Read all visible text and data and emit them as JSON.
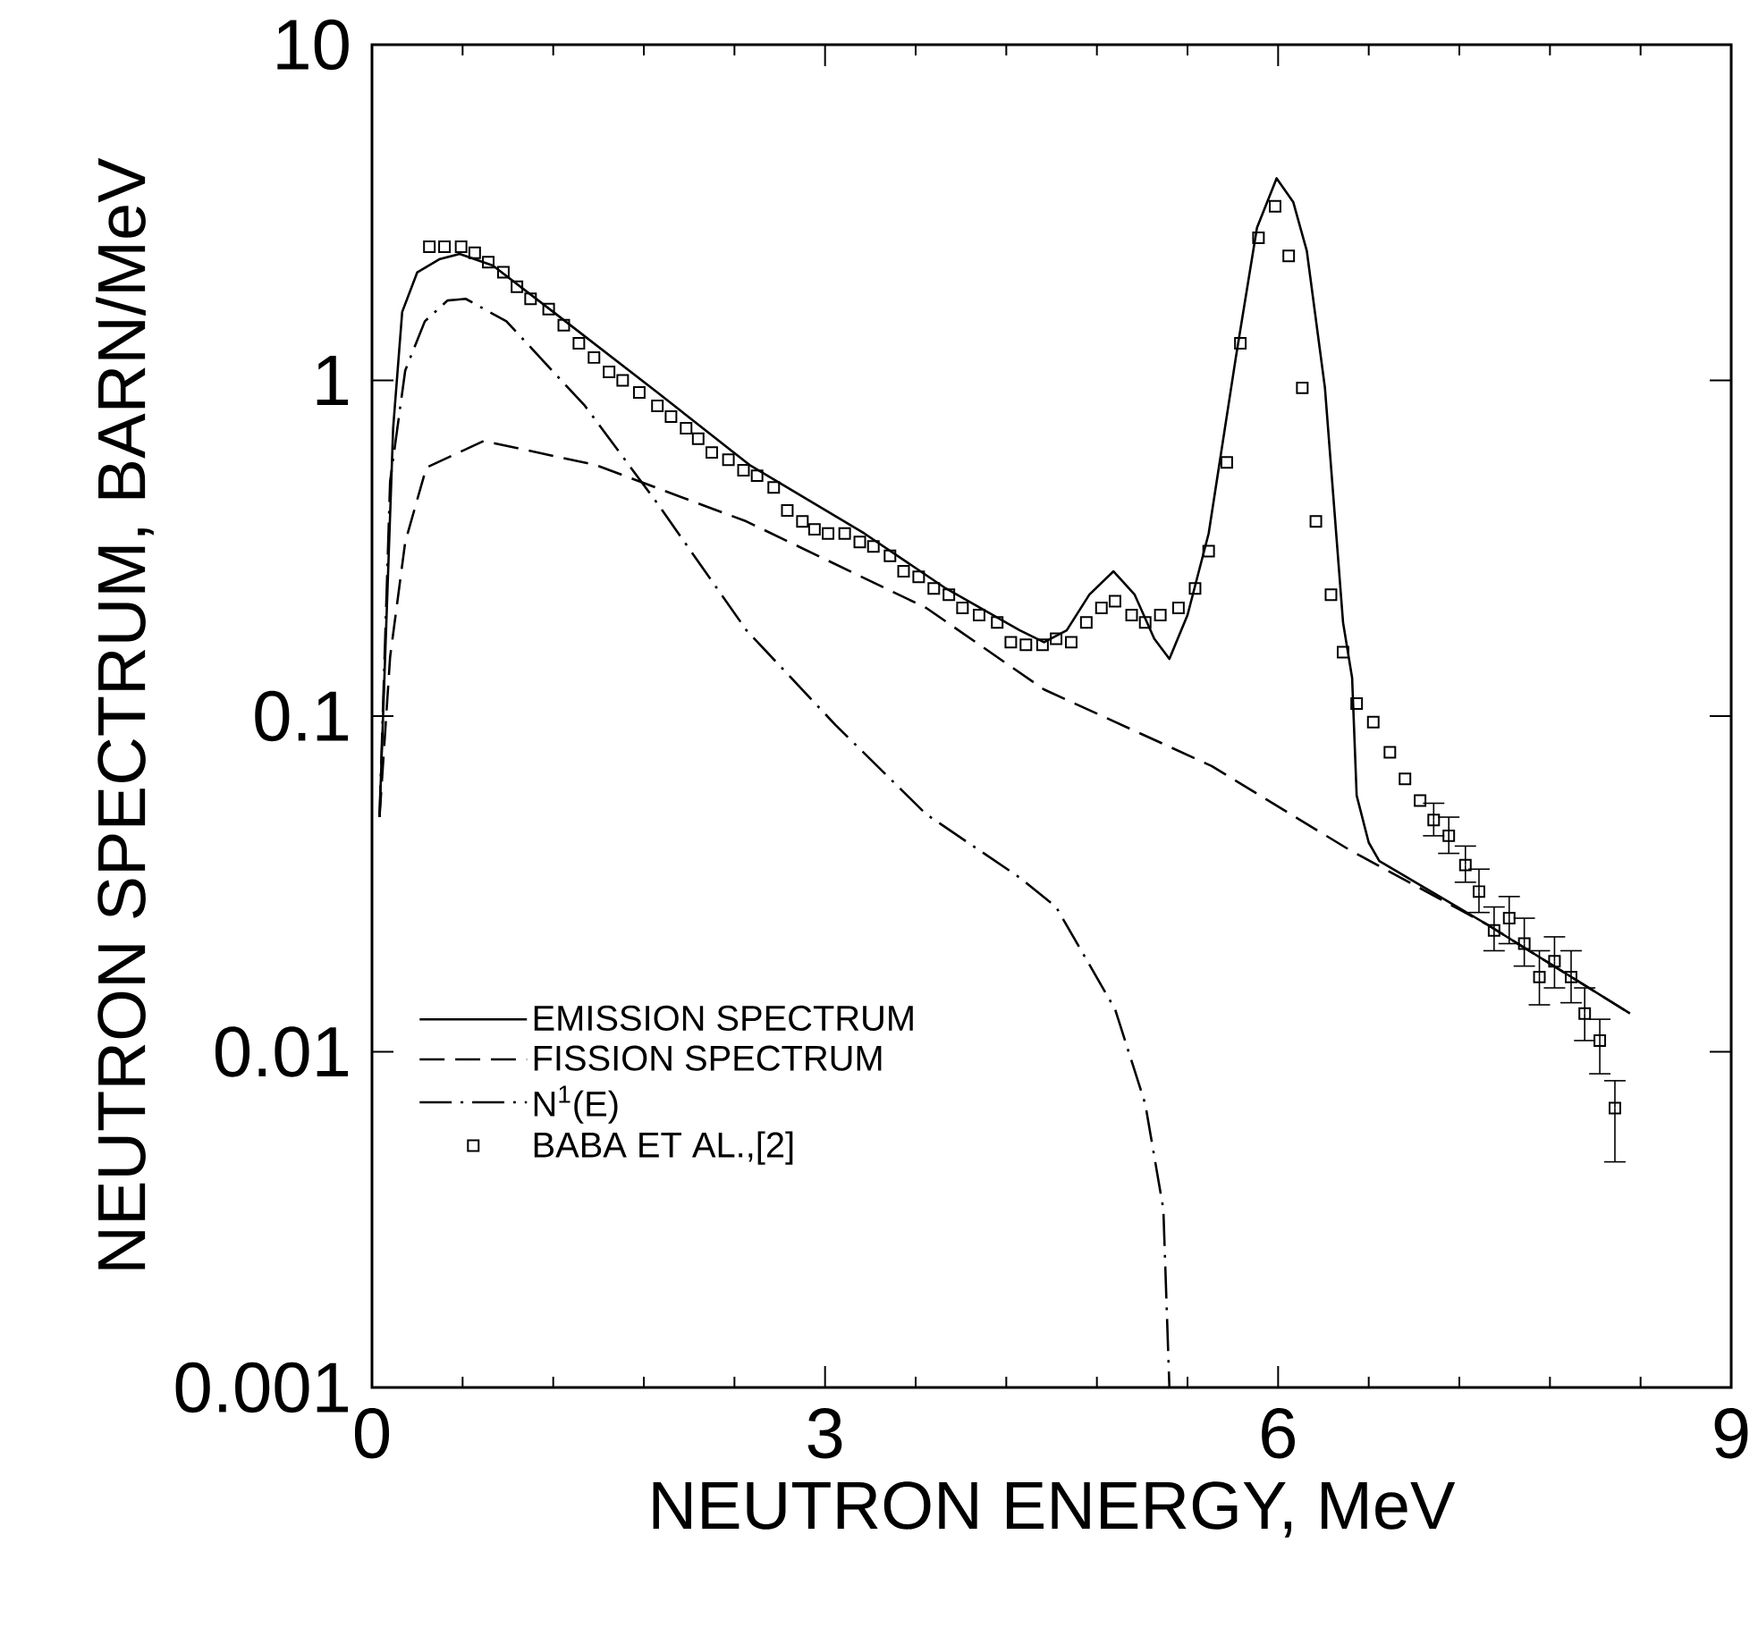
{
  "chart_data": {
    "type": "line",
    "xlabel": "NEUTRON ENERGY, MeV",
    "ylabel": "NEUTRON SPECTRUM, BARN/MeV",
    "xlim": [
      0,
      9
    ],
    "ylim": [
      0.001,
      10
    ],
    "xticks": [
      0,
      3,
      6,
      9
    ],
    "yticks": [
      0.001,
      0.01,
      0.1,
      1,
      10
    ],
    "log": "y",
    "grid": false,
    "legend": "bottom left",
    "series": [
      {
        "name": "EMISSION SPECTRUM",
        "line_style": "solid",
        "color": "#000000",
        "x": [
          0.05,
          0.14,
          0.2,
          0.3,
          0.45,
          0.58,
          0.8,
          1.2,
          1.89,
          2.5,
          3.26,
          3.8,
          4.29,
          4.45,
          4.6,
          4.75,
          4.91,
          5.05,
          5.18,
          5.28,
          5.4,
          5.54,
          5.72,
          5.86,
          5.99,
          6.1,
          6.19,
          6.31,
          6.43,
          6.49,
          6.52,
          6.6,
          6.67,
          7.38,
          8.33
        ],
        "values": [
          0.05,
          0.72,
          1.6,
          2.1,
          2.3,
          2.38,
          2.2,
          1.6,
          0.92,
          0.56,
          0.35,
          0.24,
          0.18,
          0.166,
          0.18,
          0.23,
          0.27,
          0.23,
          0.17,
          0.148,
          0.2,
          0.35,
          1.17,
          2.85,
          4.0,
          3.4,
          2.43,
          0.95,
          0.19,
          0.13,
          0.058,
          0.042,
          0.037,
          0.024,
          0.013
        ]
      },
      {
        "name": "FISSION SPECTRUM",
        "line_style": "dashed",
        "color": "#000000",
        "x": [
          0.05,
          0.12,
          0.22,
          0.36,
          0.74,
          1.48,
          2.48,
          3.67,
          4.45,
          5.56,
          6.47,
          7.38,
          8.33
        ],
        "values": [
          0.05,
          0.15,
          0.33,
          0.55,
          0.66,
          0.56,
          0.38,
          0.21,
          0.12,
          0.071,
          0.04,
          0.024,
          0.013
        ]
      },
      {
        "name": "N$^{1}$(E)",
        "line_style": "dotted",
        "color": "#000000",
        "x": [
          0.05,
          0.12,
          0.22,
          0.35,
          0.5,
          0.62,
          0.89,
          1.41,
          1.89,
          2.48,
          3.07,
          3.67,
          4.29,
          4.53,
          4.92,
          5.12,
          5.24,
          5.28
        ],
        "values": [
          0.05,
          0.5,
          1.07,
          1.5,
          1.73,
          1.75,
          1.5,
          0.84,
          0.43,
          0.18,
          0.094,
          0.051,
          0.033,
          0.027,
          0.0134,
          0.007,
          0.0034,
          0.001
        ]
      },
      {
        "name": "BABA ET AL.,[2]",
        "type": "scatter",
        "marker": "square",
        "color": "#000000",
        "x": [
          0.38,
          0.48,
          0.59,
          0.68,
          0.77,
          0.87,
          0.96,
          1.05,
          1.17,
          1.27,
          1.37,
          1.47,
          1.57,
          1.66,
          1.77,
          1.89,
          1.98,
          2.08,
          2.16,
          2.25,
          2.36,
          2.46,
          2.55,
          2.66,
          2.75,
          2.85,
          2.93,
          3.02,
          3.13,
          3.23,
          3.32,
          3.43,
          3.52,
          3.62,
          3.72,
          3.82,
          3.91,
          4.02,
          4.14,
          4.23,
          4.33,
          4.44,
          4.53,
          4.63,
          4.73,
          4.83,
          4.92,
          5.03,
          5.12,
          5.22,
          5.34,
          5.45,
          5.54,
          5.66,
          5.75,
          5.87,
          5.98,
          6.07,
          6.16,
          6.25,
          6.35,
          6.43,
          6.52,
          6.63,
          6.74,
          6.84,
          6.94,
          7.03,
          7.13,
          7.24,
          7.33,
          7.43,
          7.53,
          7.63,
          7.73,
          7.83,
          7.94,
          8.03,
          8.13,
          8.23
        ],
        "values": [
          2.5,
          2.5,
          2.5,
          2.4,
          2.25,
          2.1,
          1.9,
          1.75,
          1.63,
          1.46,
          1.29,
          1.17,
          1.06,
          1.0,
          0.92,
          0.84,
          0.78,
          0.72,
          0.67,
          0.61,
          0.58,
          0.54,
          0.52,
          0.48,
          0.41,
          0.38,
          0.36,
          0.35,
          0.35,
          0.33,
          0.32,
          0.3,
          0.27,
          0.26,
          0.24,
          0.23,
          0.21,
          0.2,
          0.19,
          0.166,
          0.163,
          0.163,
          0.17,
          0.166,
          0.19,
          0.21,
          0.22,
          0.2,
          0.19,
          0.2,
          0.21,
          0.24,
          0.31,
          0.57,
          1.29,
          2.66,
          3.3,
          2.35,
          0.95,
          0.38,
          0.23,
          0.155,
          0.109,
          0.096,
          0.078,
          0.065,
          0.056,
          0.049,
          0.044,
          0.036,
          0.03,
          0.023,
          0.025,
          0.021,
          0.0167,
          0.0186,
          0.0167,
          0.013,
          0.0108,
          0.0068
        ],
        "errors": [
          null,
          null,
          null,
          null,
          null,
          null,
          null,
          null,
          null,
          null,
          null,
          null,
          null,
          null,
          null,
          null,
          null,
          null,
          null,
          null,
          null,
          null,
          null,
          null,
          null,
          null,
          null,
          null,
          null,
          null,
          null,
          null,
          null,
          null,
          null,
          null,
          null,
          null,
          null,
          null,
          null,
          null,
          null,
          null,
          null,
          null,
          null,
          null,
          null,
          null,
          null,
          null,
          null,
          null,
          null,
          null,
          null,
          null,
          null,
          null,
          null,
          null,
          null,
          null,
          null,
          null,
          null,
          [
            0.044,
            0.055
          ],
          [
            0.039,
            0.05
          ],
          [
            0.032,
            0.041
          ],
          [
            0.026,
            0.035
          ],
          [
            0.02,
            0.027
          ],
          [
            0.021,
            0.029
          ],
          [
            0.018,
            0.025
          ],
          [
            0.0138,
            0.02
          ],
          [
            0.0155,
            0.022
          ],
          [
            0.014,
            0.02
          ],
          [
            0.0108,
            0.0155
          ],
          [
            0.0086,
            0.0125
          ],
          [
            0.0047,
            0.0082
          ]
        ]
      }
    ]
  }
}
